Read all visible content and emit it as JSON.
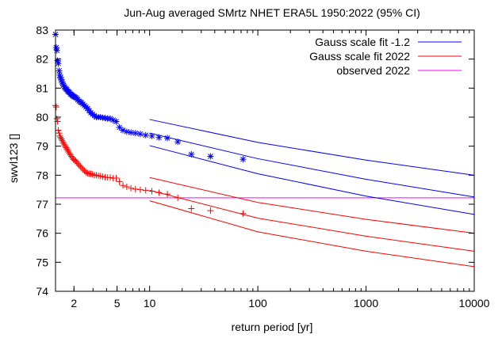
{
  "chart_data": {
    "type": "scatter",
    "title": "Jun-Aug averaged  SMrtz NHET ERA5L 1950:2022 (95% CI)",
    "xlabel": "return period [yr]",
    "ylabel": "swvl123 []",
    "xscale": "log",
    "xlim": [
      1.35,
      10000
    ],
    "ylim": [
      74,
      83
    ],
    "grid": false,
    "legend_position": "top-right",
    "x_ticks": [
      {
        "value": 2,
        "label": "2"
      },
      {
        "value": 5,
        "label": "5"
      },
      {
        "value": 10,
        "label": "10"
      },
      {
        "value": 100,
        "label": "100"
      },
      {
        "value": 1000,
        "label": "1000"
      },
      {
        "value": 10000,
        "label": "10000"
      }
    ],
    "y_ticks": [
      {
        "value": 74,
        "label": "74"
      },
      {
        "value": 75,
        "label": "75"
      },
      {
        "value": 76,
        "label": "76"
      },
      {
        "value": 77,
        "label": "77"
      },
      {
        "value": 78,
        "label": "78"
      },
      {
        "value": 79,
        "label": "79"
      },
      {
        "value": 80,
        "label": "80"
      },
      {
        "value": 81,
        "label": "81"
      },
      {
        "value": 82,
        "label": "82"
      },
      {
        "value": 83,
        "label": "83"
      }
    ],
    "legend": [
      {
        "label": "Gauss scale fit -1.2",
        "color": "#0000ff"
      },
      {
        "label": "Gauss scale fit 2022",
        "color": "#ff0000"
      },
      {
        "label": "observed 2022",
        "color": "#ff00ff"
      }
    ],
    "fit_lines": [
      {
        "series": "Gauss scale fit -1.2",
        "color": "#0000ff",
        "band": "upper",
        "x": [
          10,
          100,
          1000,
          10000
        ],
        "y": [
          79.92,
          79.13,
          78.52,
          78.0
        ]
      },
      {
        "series": "Gauss scale fit -1.2",
        "color": "#0000ff",
        "band": "central",
        "x": [
          10,
          100,
          1000,
          10000
        ],
        "y": [
          79.45,
          78.57,
          77.86,
          77.25
        ]
      },
      {
        "series": "Gauss scale fit -1.2",
        "color": "#0000ff",
        "band": "lower",
        "x": [
          10,
          100,
          1000,
          10000
        ],
        "y": [
          79.02,
          78.05,
          77.28,
          76.65
        ]
      },
      {
        "series": "Gauss scale fit 2022",
        "color": "#ff0000",
        "band": "upper",
        "x": [
          10,
          100,
          1000,
          10000
        ],
        "y": [
          77.92,
          77.06,
          76.48,
          76.0
        ]
      },
      {
        "series": "Gauss scale fit 2022",
        "color": "#ff0000",
        "band": "central",
        "x": [
          10,
          100,
          1000,
          10000
        ],
        "y": [
          77.48,
          76.52,
          75.9,
          75.38
        ]
      },
      {
        "series": "Gauss scale fit 2022",
        "color": "#ff0000",
        "band": "lower",
        "x": [
          10,
          100,
          1000,
          10000
        ],
        "y": [
          77.12,
          76.05,
          75.38,
          74.85
        ]
      }
    ],
    "observed_line": {
      "series": "observed 2022",
      "color": "#ff00ff",
      "y": 77.22
    },
    "observed_points": [
      {
        "color": "#0000ff",
        "marker": "asterisk",
        "x": [
          1.35,
          1.37,
          1.39,
          1.41,
          1.43,
          1.46,
          1.48,
          1.5,
          1.53,
          1.55,
          1.58,
          1.6,
          1.63,
          1.66,
          1.69,
          1.72,
          1.75,
          1.78,
          1.82,
          1.85,
          1.89,
          1.93,
          1.97,
          2.02,
          2.07,
          2.12,
          2.17,
          2.23,
          2.29,
          2.35,
          2.42,
          2.5,
          2.58,
          2.67,
          2.76,
          2.86,
          2.97,
          3.09,
          3.22,
          3.36,
          3.52,
          3.69,
          3.88,
          4.09,
          4.33,
          4.6,
          4.91,
          5.26,
          5.67,
          6.15,
          6.72,
          7.4,
          8.2,
          9.2,
          10.5,
          12.2,
          14.6,
          18.2,
          24.3,
          36.5,
          73
        ],
        "y": [
          82.85,
          82.4,
          82.3,
          81.95,
          81.85,
          81.6,
          81.45,
          81.35,
          81.3,
          81.2,
          81.15,
          81.1,
          81.05,
          81.0,
          80.97,
          80.95,
          80.9,
          80.87,
          80.85,
          80.8,
          80.78,
          80.75,
          80.72,
          80.7,
          80.68,
          80.65,
          80.6,
          80.55,
          80.52,
          80.5,
          80.45,
          80.4,
          80.35,
          80.3,
          80.22,
          80.15,
          80.1,
          80.05,
          80.0,
          80.0,
          80.0,
          79.98,
          79.97,
          79.95,
          79.95,
          79.9,
          79.85,
          79.65,
          79.55,
          79.5,
          79.47,
          79.45,
          79.42,
          79.38,
          79.35,
          79.3,
          79.28,
          79.15,
          78.72,
          78.65,
          78.55
        ]
      },
      {
        "color": "#ff0000",
        "marker": "plus",
        "x": [
          1.35,
          1.37,
          1.39,
          1.41,
          1.43,
          1.46,
          1.48,
          1.5,
          1.53,
          1.55,
          1.58,
          1.6,
          1.63,
          1.66,
          1.69,
          1.72,
          1.75,
          1.78,
          1.82,
          1.85,
          1.89,
          1.93,
          1.97,
          2.02,
          2.07,
          2.12,
          2.17,
          2.23,
          2.29,
          2.35,
          2.42,
          2.5,
          2.58,
          2.67,
          2.76,
          2.86,
          2.97,
          3.09,
          3.22,
          3.36,
          3.52,
          3.69,
          3.88,
          4.09,
          4.33,
          4.6,
          4.91,
          5.26,
          5.67,
          6.15,
          6.72,
          7.4,
          8.2,
          9.2,
          10.5,
          12.2,
          14.6,
          18.2,
          24.3,
          36.5,
          73
        ],
        "y": [
          80.4,
          80.35,
          79.95,
          79.85,
          79.55,
          79.45,
          79.35,
          79.3,
          79.25,
          79.2,
          79.15,
          79.1,
          79.05,
          79.0,
          78.95,
          78.9,
          78.85,
          78.8,
          78.75,
          78.7,
          78.65,
          78.6,
          78.55,
          78.52,
          78.5,
          78.45,
          78.4,
          78.35,
          78.3,
          78.25,
          78.2,
          78.15,
          78.1,
          78.07,
          78.05,
          78.05,
          78.03,
          78.0,
          78.0,
          77.98,
          77.97,
          77.95,
          77.93,
          77.92,
          77.92,
          77.9,
          77.9,
          77.78,
          77.65,
          77.6,
          77.55,
          77.52,
          77.5,
          77.48,
          77.45,
          77.4,
          77.35,
          77.22,
          76.85,
          76.78,
          76.68
        ]
      }
    ]
  }
}
